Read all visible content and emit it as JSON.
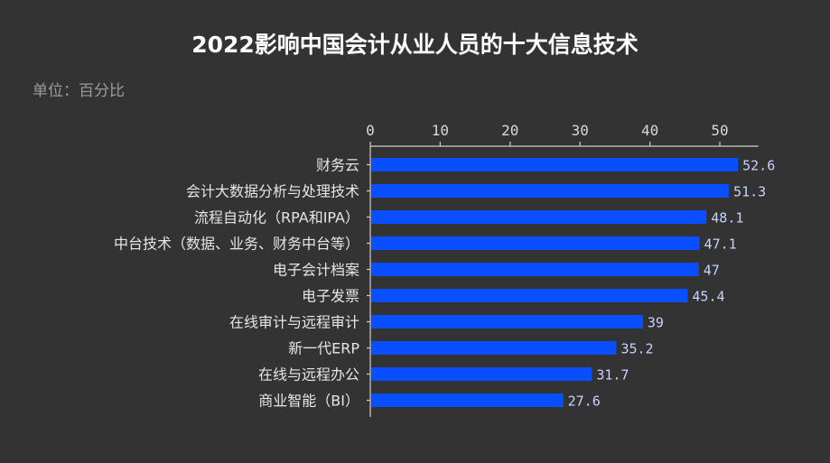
{
  "chart_data": {
    "type": "bar",
    "orientation": "horizontal",
    "title": "2022影响中国会计从业人员的十大信息技术",
    "unit_label": "单位：百分比",
    "categories": [
      "财务云",
      "会计大数据分析与处理技术",
      "流程自动化（RPA和IPA）",
      "中台技术（数据、业务、财务中台等）",
      "电子会计档案",
      "电子发票",
      "在线审计与远程审计",
      "新一代ERP",
      "在线与远程办公",
      "商业智能（BI）"
    ],
    "values": [
      52.6,
      51.3,
      48.1,
      47.1,
      47,
      45.4,
      39,
      35.2,
      31.7,
      27.6
    ],
    "value_labels": [
      "52.6",
      "51.3",
      "48.1",
      "47.1",
      "47",
      "45.4",
      "39",
      "35.2",
      "31.7",
      "27.6"
    ],
    "x_ticks": [
      0,
      10,
      20,
      30,
      40,
      50
    ],
    "x_tick_labels": [
      "0",
      "10",
      "20",
      "30",
      "40",
      "50"
    ],
    "xlim": [
      0,
      55
    ],
    "xaxis_position": "top",
    "bar_color": "#0a4fff",
    "background_color": "#333333",
    "grid": false,
    "legend": "none"
  }
}
